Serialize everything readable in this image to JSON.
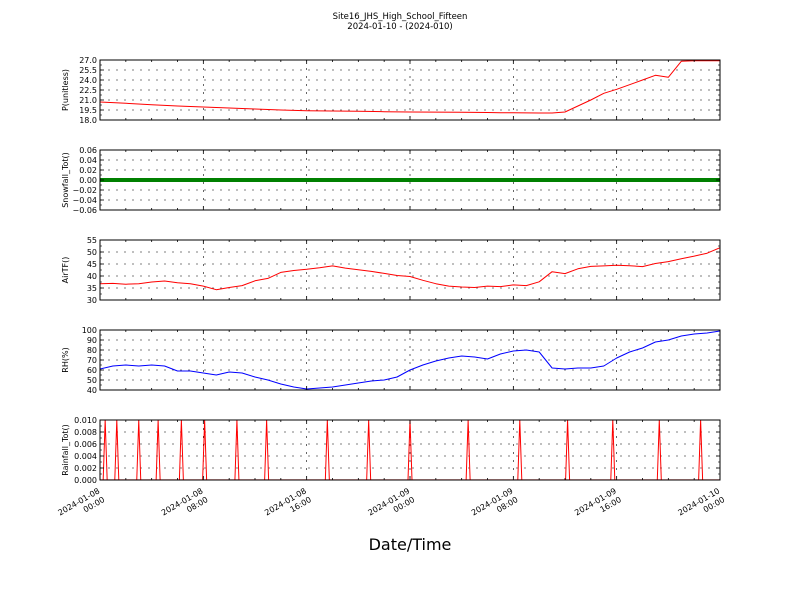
{
  "figure": {
    "title_line1": "Site16_JHS_High_School_Fifteen",
    "title_line2": "2024-01-10 - (2024-010)",
    "xlabel": "Date/Time",
    "x_ticks": [
      {
        "d1": "2024-01-08",
        "d2": "00:00"
      },
      {
        "d1": "2024-01-08",
        "d2": "08:00"
      },
      {
        "d1": "2024-01-08",
        "d2": "16:00"
      },
      {
        "d1": "2024-01-09",
        "d2": "00:00"
      },
      {
        "d1": "2024-01-09",
        "d2": "08:00"
      },
      {
        "d1": "2024-01-09",
        "d2": "16:00"
      },
      {
        "d1": "2024-01-10",
        "d2": "00:00"
      }
    ]
  },
  "chart_data": [
    {
      "type": "line",
      "ylabel": "P(unitless)",
      "color": "#ff0000",
      "ylim": [
        18.0,
        27.0
      ],
      "yticks": [
        "18.0",
        "19.5",
        "21.0",
        "22.5",
        "24.0",
        "25.5",
        "27.0"
      ],
      "ytick_values": [
        18.0,
        19.5,
        21.0,
        22.5,
        24.0,
        25.5,
        27.0
      ],
      "minor_step": 1.5,
      "marker": "line",
      "x_hours": [
        0,
        2,
        4,
        6,
        8,
        10,
        12,
        14,
        16,
        18,
        20,
        22,
        24,
        26,
        28,
        30,
        31,
        32,
        33,
        34,
        35,
        36,
        37,
        38,
        39,
        40,
        41,
        42,
        43,
        44,
        45,
        46,
        47,
        48
      ],
      "values": [
        20.7,
        20.5,
        20.3,
        20.1,
        19.95,
        19.8,
        19.65,
        19.5,
        19.4,
        19.35,
        19.3,
        19.25,
        19.2,
        19.18,
        19.15,
        19.12,
        19.1,
        19.08,
        19.06,
        19.05,
        19.05,
        19.2,
        20.1,
        21.0,
        22.0,
        22.6,
        23.3,
        24.0,
        24.7,
        24.4,
        26.8,
        26.9,
        26.9,
        26.9
      ]
    },
    {
      "type": "line",
      "ylabel": "Snowfall_Tot()",
      "color": "#008000",
      "ylim": [
        -0.06,
        0.06
      ],
      "yticks": [
        "−0.06",
        "−0.04",
        "−0.02",
        "0.00",
        "0.02",
        "0.04",
        "0.06"
      ],
      "ytick_values": [
        -0.06,
        -0.04,
        -0.02,
        0.0,
        0.02,
        0.04,
        0.06
      ],
      "minor_step": 0.02,
      "marker": "thick",
      "x_hours": [
        0,
        48
      ],
      "values": [
        0.0,
        0.0
      ]
    },
    {
      "type": "line",
      "ylabel": "AirTF()",
      "color": "#ff0000",
      "ylim": [
        30,
        55
      ],
      "yticks": [
        "30",
        "35",
        "40",
        "45",
        "50",
        "55"
      ],
      "ytick_values": [
        30,
        35,
        40,
        45,
        50,
        55
      ],
      "minor_step": 5,
      "marker": "line",
      "x_hours": [
        0,
        1,
        2,
        3,
        4,
        5,
        6,
        7,
        8,
        9,
        10,
        11,
        12,
        13,
        14,
        15,
        16,
        17,
        18,
        19,
        20,
        21,
        22,
        23,
        24,
        25,
        26,
        27,
        28,
        29,
        30,
        31,
        32,
        33,
        34,
        35,
        36,
        37,
        38,
        39,
        40,
        41,
        42,
        43,
        44,
        45,
        46,
        47,
        48
      ],
      "values": [
        36.8,
        36.9,
        36.6,
        36.8,
        37.5,
        37.9,
        37.2,
        36.8,
        35.8,
        34.3,
        35.2,
        36.0,
        38.0,
        39.0,
        41.5,
        42.3,
        42.8,
        43.4,
        44.2,
        43.3,
        42.6,
        41.9,
        41.1,
        40.2,
        39.8,
        38.2,
        36.8,
        35.8,
        35.4,
        35.2,
        35.8,
        35.6,
        36.3,
        36.0,
        37.6,
        41.8,
        41.0,
        43.0,
        44.0,
        44.2,
        44.5,
        44.3,
        43.9,
        45.2,
        46.0,
        47.2,
        48.3,
        49.5,
        51.8
      ]
    },
    {
      "type": "line",
      "ylabel": "RH(%)",
      "color": "#0000ff",
      "ylim": [
        40,
        100
      ],
      "yticks": [
        "40",
        "50",
        "60",
        "70",
        "80",
        "90",
        "100"
      ],
      "ytick_values": [
        40,
        50,
        60,
        70,
        80,
        90,
        100
      ],
      "minor_step": 10,
      "marker": "line",
      "x_hours": [
        0,
        1,
        2,
        3,
        4,
        5,
        6,
        7,
        8,
        9,
        10,
        11,
        12,
        13,
        14,
        15,
        16,
        17,
        18,
        19,
        20,
        21,
        22,
        23,
        24,
        25,
        26,
        27,
        28,
        29,
        30,
        31,
        32,
        33,
        34,
        35,
        36,
        37,
        38,
        39,
        40,
        41,
        42,
        43,
        44,
        45,
        46,
        47,
        48
      ],
      "values": [
        61,
        64,
        65,
        64,
        65,
        64,
        59,
        59,
        57,
        55,
        58,
        57,
        53,
        50,
        46,
        43,
        41,
        42,
        43,
        45,
        47,
        49,
        50,
        53,
        60,
        65,
        69,
        72,
        74,
        73,
        71,
        76,
        79,
        80,
        78,
        62,
        61,
        62,
        62,
        64,
        72,
        78,
        82,
        88,
        90,
        94,
        96,
        97,
        99
      ]
    },
    {
      "type": "line",
      "ylabel": "Rainfall_Tot()",
      "color": "#ff0000",
      "ylim": [
        0.0,
        0.01
      ],
      "yticks": [
        "0.000",
        "0.002",
        "0.004",
        "0.006",
        "0.008",
        "0.010"
      ],
      "ytick_values": [
        0.0,
        0.002,
        0.004,
        0.006,
        0.008,
        0.01
      ],
      "minor_step": 0.002,
      "marker": "spikes",
      "spike_hours": [
        0.4,
        1.3,
        3.0,
        4.5,
        6.3,
        8.1,
        10.6,
        12.9,
        17.6,
        20.8,
        24.0,
        28.5,
        32.5,
        36.2,
        39.7,
        43.3,
        46.5
      ],
      "spike_value": 0.01
    }
  ]
}
